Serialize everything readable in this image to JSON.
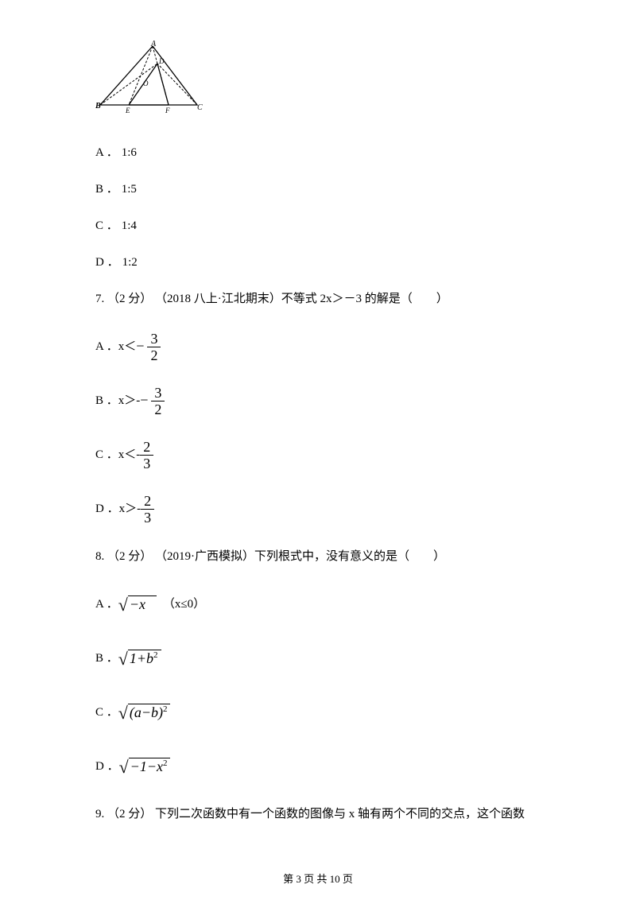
{
  "diagram": {
    "labels": {
      "A": "A",
      "B": "B",
      "C": "C",
      "D": "D",
      "E": "E",
      "F": "F",
      "O": "O"
    }
  },
  "q6_options": {
    "A": {
      "label": "A ．",
      "value": "1:6"
    },
    "B": {
      "label": "B ．",
      "value": "1:5"
    },
    "C": {
      "label": "C ．",
      "value": "1:4"
    },
    "D": {
      "label": "D ．",
      "value": "1:2"
    }
  },
  "q7": {
    "text": "7.  （2 分） （2018 八上·江北期末）不等式 2x＞－3 的解是（　　）",
    "options": {
      "A": {
        "label": "A ．",
        "prefix": "x＜",
        "num": "3",
        "den": "2",
        "neg": true
      },
      "B": {
        "label": "B ．",
        "prefix": "x＞-",
        "num": "3",
        "den": "2",
        "neg": true
      },
      "C": {
        "label": "C ．",
        "prefix": "x＜-",
        "num": "2",
        "den": "3",
        "neg": false
      },
      "D": {
        "label": "D ．",
        "prefix": "x＞-",
        "num": "2",
        "den": "3",
        "neg": false
      }
    }
  },
  "q8": {
    "text": "8.  （2 分） （2019·广西模拟）下列根式中，没有意义的是（　　）",
    "options": {
      "A": {
        "label": "A ．",
        "radicand": "−x",
        "note": "（x≤0）"
      },
      "B": {
        "label": "B ．",
        "radicand_html": "1+b<span class=\"sup\">2</span>"
      },
      "C": {
        "label": "C ．",
        "radicand_html": "(a−b)<span class=\"sup\">2</span>"
      },
      "D": {
        "label": "D ．",
        "radicand_html": "−1−x<span class=\"sup\">2</span>"
      }
    }
  },
  "q9": {
    "text": "9.  （2 分）  下列二次函数中有一个函数的图像与 x 轴有两个不同的交点，这个函数"
  },
  "footer": "第 3 页 共 10 页"
}
